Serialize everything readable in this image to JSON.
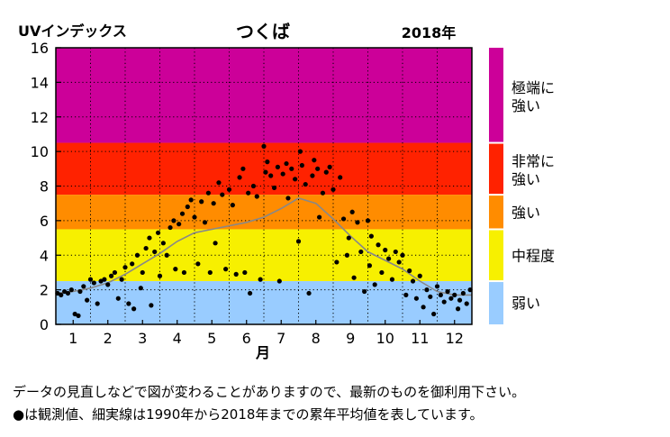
{
  "chart_data": {
    "type": "scatter",
    "title": "つくば",
    "year_label": "2018年",
    "ylabel": "UVインデックス",
    "xlabel": "月",
    "ylim": [
      0,
      16
    ],
    "xlim": [
      0.5,
      12.5
    ],
    "yticks": [
      "0",
      "2",
      "4",
      "6",
      "8",
      "10",
      "12",
      "14",
      "16"
    ],
    "xticks": [
      "1",
      "2",
      "3",
      "4",
      "5",
      "6",
      "7",
      "8",
      "9",
      "10",
      "11",
      "12"
    ],
    "bands": [
      {
        "label": "極端に強い",
        "from": 10.5,
        "to": 16,
        "color": "#cc0099"
      },
      {
        "label": "非常に強い",
        "from": 7.5,
        "to": 10.5,
        "color": "#ff2200"
      },
      {
        "label": "強い",
        "from": 5.5,
        "to": 7.5,
        "color": "#ff8c00"
      },
      {
        "label": "中程度",
        "from": 2.5,
        "to": 5.5,
        "color": "#f7f000"
      },
      {
        "label": "弱い",
        "from": 0,
        "to": 2.5,
        "color": "#99ccff"
      }
    ],
    "band_labels": [
      {
        "line1": "極端に",
        "line2": "強い"
      },
      {
        "line1": "非常に",
        "line2": "強い"
      },
      {
        "line1": "強い",
        "line2": ""
      },
      {
        "line1": "中程度",
        "line2": ""
      },
      {
        "line1": "弱い",
        "line2": ""
      }
    ],
    "grid": true,
    "series": [
      {
        "kind": "line",
        "color": "#888888",
        "x": [
          0.5,
          1,
          1.5,
          2,
          2.5,
          3,
          3.5,
          4,
          4.5,
          5,
          5.5,
          6,
          6.5,
          7,
          7.5,
          8,
          8.5,
          9,
          9.5,
          10,
          10.5,
          11,
          11.5,
          12,
          12.5
        ],
        "y": [
          1.8,
          1.9,
          2.1,
          2.4,
          2.9,
          3.5,
          4.1,
          4.8,
          5.3,
          5.5,
          5.7,
          5.9,
          6.2,
          6.7,
          7.3,
          7.0,
          6.1,
          5.1,
          4.2,
          3.7,
          3.2,
          2.5,
          1.9,
          1.7,
          1.7
        ]
      },
      {
        "kind": "points",
        "color": "#000000",
        "points": [
          [
            0.55,
            1.8
          ],
          [
            0.65,
            1.7
          ],
          [
            0.75,
            1.9
          ],
          [
            0.85,
            1.8
          ],
          [
            0.95,
            2.0
          ],
          [
            1.05,
            0.6
          ],
          [
            1.15,
            0.5
          ],
          [
            1.2,
            1.9
          ],
          [
            1.3,
            2.2
          ],
          [
            1.4,
            1.4
          ],
          [
            1.5,
            2.6
          ],
          [
            1.6,
            2.4
          ],
          [
            1.7,
            1.2
          ],
          [
            1.8,
            2.5
          ],
          [
            1.9,
            2.6
          ],
          [
            2.0,
            2.3
          ],
          [
            2.1,
            2.8
          ],
          [
            2.2,
            3.0
          ],
          [
            2.3,
            1.5
          ],
          [
            2.4,
            2.6
          ],
          [
            2.5,
            3.3
          ],
          [
            2.6,
            1.2
          ],
          [
            2.7,
            3.5
          ],
          [
            2.75,
            0.9
          ],
          [
            2.85,
            4.0
          ],
          [
            2.95,
            2.1
          ],
          [
            3.0,
            3.0
          ],
          [
            3.1,
            4.4
          ],
          [
            3.2,
            5.0
          ],
          [
            3.25,
            1.1
          ],
          [
            3.35,
            4.2
          ],
          [
            3.45,
            5.3
          ],
          [
            3.5,
            2.8
          ],
          [
            3.6,
            4.7
          ],
          [
            3.7,
            4.0
          ],
          [
            3.8,
            5.6
          ],
          [
            3.9,
            6.0
          ],
          [
            3.95,
            3.2
          ],
          [
            4.05,
            5.8
          ],
          [
            4.15,
            6.4
          ],
          [
            4.2,
            3.0
          ],
          [
            4.3,
            6.8
          ],
          [
            4.4,
            7.2
          ],
          [
            4.5,
            6.2
          ],
          [
            4.6,
            3.5
          ],
          [
            4.7,
            7.1
          ],
          [
            4.8,
            5.9
          ],
          [
            4.9,
            7.6
          ],
          [
            4.95,
            3.0
          ],
          [
            5.05,
            7.0
          ],
          [
            5.1,
            4.7
          ],
          [
            5.2,
            8.2
          ],
          [
            5.3,
            7.5
          ],
          [
            5.4,
            3.2
          ],
          [
            5.5,
            7.8
          ],
          [
            5.6,
            6.9
          ],
          [
            5.7,
            2.9
          ],
          [
            5.8,
            8.5
          ],
          [
            5.9,
            9.0
          ],
          [
            5.95,
            3.0
          ],
          [
            6.05,
            7.6
          ],
          [
            6.1,
            1.8
          ],
          [
            6.2,
            8.0
          ],
          [
            6.3,
            7.4
          ],
          [
            6.4,
            2.6
          ],
          [
            6.5,
            10.3
          ],
          [
            6.55,
            8.8
          ],
          [
            6.6,
            9.4
          ],
          [
            6.7,
            8.6
          ],
          [
            6.8,
            7.9
          ],
          [
            6.9,
            9.1
          ],
          [
            6.95,
            2.5
          ],
          [
            7.05,
            8.7
          ],
          [
            7.15,
            9.3
          ],
          [
            7.2,
            7.3
          ],
          [
            7.3,
            9.0
          ],
          [
            7.4,
            8.4
          ],
          [
            7.5,
            4.8
          ],
          [
            7.55,
            10.0
          ],
          [
            7.6,
            9.2
          ],
          [
            7.7,
            8.1
          ],
          [
            7.8,
            1.8
          ],
          [
            7.9,
            8.6
          ],
          [
            7.95,
            9.5
          ],
          [
            8.05,
            9.0
          ],
          [
            8.1,
            6.2
          ],
          [
            8.2,
            7.6
          ],
          [
            8.3,
            8.8
          ],
          [
            8.4,
            9.1
          ],
          [
            8.5,
            7.8
          ],
          [
            8.6,
            3.6
          ],
          [
            8.7,
            8.5
          ],
          [
            8.8,
            6.1
          ],
          [
            8.9,
            4.0
          ],
          [
            8.95,
            5.0
          ],
          [
            9.05,
            6.5
          ],
          [
            9.1,
            2.7
          ],
          [
            9.2,
            5.9
          ],
          [
            9.3,
            4.2
          ],
          [
            9.4,
            1.9
          ],
          [
            9.5,
            6.0
          ],
          [
            9.55,
            3.4
          ],
          [
            9.6,
            5.1
          ],
          [
            9.7,
            2.3
          ],
          [
            9.8,
            4.6
          ],
          [
            9.9,
            3.0
          ],
          [
            10.0,
            4.3
          ],
          [
            10.1,
            3.8
          ],
          [
            10.2,
            2.6
          ],
          [
            10.3,
            4.2
          ],
          [
            10.4,
            3.6
          ],
          [
            10.5,
            4.0
          ],
          [
            10.6,
            1.7
          ],
          [
            10.7,
            3.1
          ],
          [
            10.8,
            2.5
          ],
          [
            10.9,
            1.5
          ],
          [
            11.0,
            2.8
          ],
          [
            11.1,
            1.0
          ],
          [
            11.2,
            2.0
          ],
          [
            11.3,
            1.6
          ],
          [
            11.4,
            0.6
          ],
          [
            11.5,
            2.2
          ],
          [
            11.6,
            1.7
          ],
          [
            11.7,
            1.3
          ],
          [
            11.8,
            1.9
          ],
          [
            11.9,
            1.5
          ],
          [
            12.0,
            1.7
          ],
          [
            12.1,
            0.9
          ],
          [
            12.15,
            1.4
          ],
          [
            12.25,
            1.8
          ],
          [
            12.35,
            1.2
          ],
          [
            12.45,
            2.0
          ]
        ]
      }
    ]
  },
  "notes": {
    "line1": "データの見直しなどで図が変わることがありますので、最新のものを御利用下さい。",
    "line2": "●は観測値、細実線は1990年から2018年までの累年平均値を表しています。"
  }
}
